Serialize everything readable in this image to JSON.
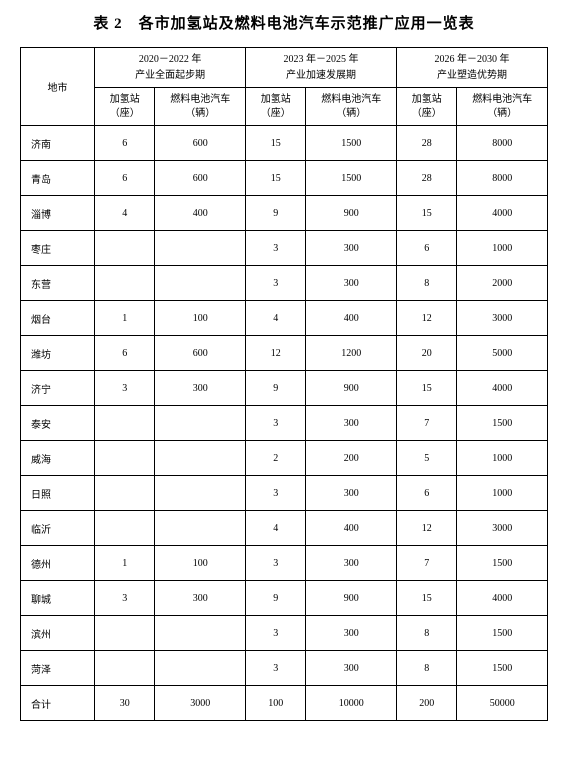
{
  "title": "表 2　各市加氢站及燃料电池汽车示范推广应用一览表",
  "header": {
    "city": "地市",
    "periods": [
      {
        "line1": "2020－2022 年",
        "line2": "产业全面起步期"
      },
      {
        "line1": "2023 年－2025 年",
        "line2": "产业加速发展期"
      },
      {
        "line1": "2026 年－2030 年",
        "line2": "产业塑造优势期"
      }
    ],
    "station": {
      "line1": "加氢站",
      "line2": "（座）"
    },
    "vehicle": {
      "line1": "燃料电池汽车",
      "line2": "（辆）"
    }
  },
  "rows": [
    {
      "city": "济南",
      "s1": "6",
      "v1": "600",
      "s2": "15",
      "v2": "1500",
      "s3": "28",
      "v3": "8000"
    },
    {
      "city": "青岛",
      "s1": "6",
      "v1": "600",
      "s2": "15",
      "v2": "1500",
      "s3": "28",
      "v3": "8000"
    },
    {
      "city": "淄博",
      "s1": "4",
      "v1": "400",
      "s2": "9",
      "v2": "900",
      "s3": "15",
      "v3": "4000"
    },
    {
      "city": "枣庄",
      "s1": "",
      "v1": "",
      "s2": "3",
      "v2": "300",
      "s3": "6",
      "v3": "1000"
    },
    {
      "city": "东营",
      "s1": "",
      "v1": "",
      "s2": "3",
      "v2": "300",
      "s3": "8",
      "v3": "2000"
    },
    {
      "city": "烟台",
      "s1": "1",
      "v1": "100",
      "s2": "4",
      "v2": "400",
      "s3": "12",
      "v3": "3000"
    },
    {
      "city": "潍坊",
      "s1": "6",
      "v1": "600",
      "s2": "12",
      "v2": "1200",
      "s3": "20",
      "v3": "5000"
    },
    {
      "city": "济宁",
      "s1": "3",
      "v1": "300",
      "s2": "9",
      "v2": "900",
      "s3": "15",
      "v3": "4000"
    },
    {
      "city": "泰安",
      "s1": "",
      "v1": "",
      "s2": "3",
      "v2": "300",
      "s3": "7",
      "v3": "1500"
    },
    {
      "city": "威海",
      "s1": "",
      "v1": "",
      "s2": "2",
      "v2": "200",
      "s3": "5",
      "v3": "1000"
    },
    {
      "city": "日照",
      "s1": "",
      "v1": "",
      "s2": "3",
      "v2": "300",
      "s3": "6",
      "v3": "1000"
    },
    {
      "city": "临沂",
      "s1": "",
      "v1": "",
      "s2": "4",
      "v2": "400",
      "s3": "12",
      "v3": "3000"
    },
    {
      "city": "德州",
      "s1": "1",
      "v1": "100",
      "s2": "3",
      "v2": "300",
      "s3": "7",
      "v3": "1500"
    },
    {
      "city": "聊城",
      "s1": "3",
      "v1": "300",
      "s2": "9",
      "v2": "900",
      "s3": "15",
      "v3": "4000"
    },
    {
      "city": "滨州",
      "s1": "",
      "v1": "",
      "s2": "3",
      "v2": "300",
      "s3": "8",
      "v3": "1500"
    },
    {
      "city": "菏泽",
      "s1": "",
      "v1": "",
      "s2": "3",
      "v2": "300",
      "s3": "8",
      "v3": "1500"
    },
    {
      "city": "合计",
      "s1": "30",
      "v1": "3000",
      "s2": "100",
      "v2": "10000",
      "s3": "200",
      "v3": "50000"
    }
  ]
}
